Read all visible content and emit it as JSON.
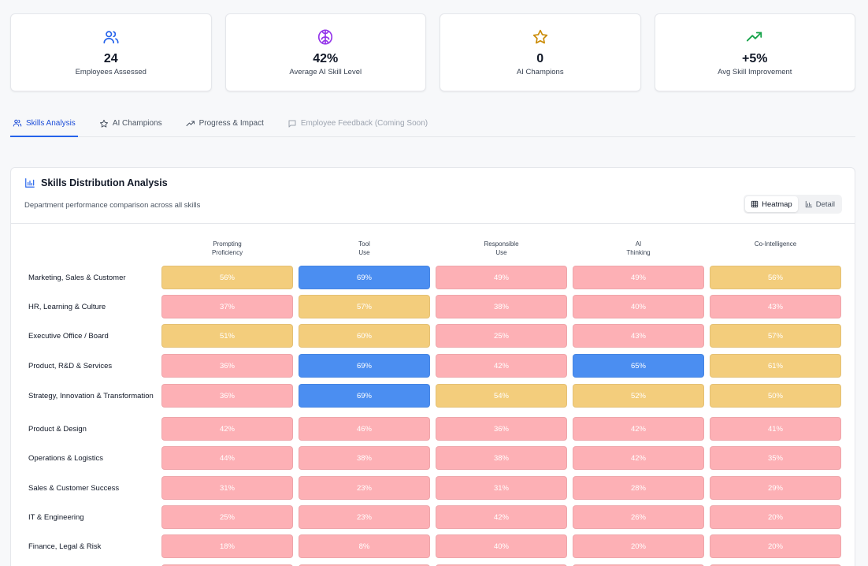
{
  "colors": {
    "low": "#fdb0b5",
    "mid": "#f3cd7c",
    "high": "#4b8ef1"
  },
  "stats": [
    {
      "icon": "users-icon",
      "value": "24",
      "label": "Employees Assessed",
      "color": "#2563eb"
    },
    {
      "icon": "brain-icon",
      "value": "42%",
      "label": "Average AI Skill Level",
      "color": "#9333ea"
    },
    {
      "icon": "star-icon",
      "value": "0",
      "label": "AI Champions",
      "color": "#ca8a04"
    },
    {
      "icon": "trending-up-icon",
      "value": "+5%",
      "label": "Avg Skill Improvement",
      "color": "#16a34a"
    }
  ],
  "tabs": [
    {
      "icon": "users-icon",
      "label": "Skills Analysis",
      "active": true
    },
    {
      "icon": "star-icon",
      "label": "AI Champions"
    },
    {
      "icon": "trending-up-icon",
      "label": "Progress & Impact"
    },
    {
      "icon": "message-icon",
      "label": "Employee Feedback (Coming Soon)",
      "disabled": true
    }
  ],
  "panel": {
    "title": "Skills Distribution Analysis",
    "subtitle": "Department performance comparison across all skills",
    "toggle": {
      "heatmap_label": "Heatmap",
      "detail_label": "Detail"
    }
  },
  "heatmap": {
    "columns": [
      "Prompting\nProficiency",
      "Tool\nUse",
      "Responsible\nUse",
      "AI\nThinking",
      "Co-Intelligence"
    ],
    "rows": [
      {
        "dept": "Marketing, Sales & Customer",
        "values": [
          56,
          69,
          49,
          49,
          56
        ]
      },
      {
        "dept": "HR, Learning & Culture",
        "values": [
          37,
          57,
          38,
          40,
          43
        ]
      },
      {
        "dept": "Executive Office / Board",
        "values": [
          51,
          60,
          25,
          43,
          57
        ]
      },
      {
        "dept": "Product, R&D & Services",
        "values": [
          36,
          69,
          42,
          65,
          61
        ]
      },
      {
        "dept": "Strategy, Innovation & Transformation",
        "values": [
          36,
          69,
          54,
          52,
          50
        ]
      },
      {
        "dept": "Product & Design",
        "values": [
          42,
          46,
          36,
          42,
          41
        ]
      },
      {
        "dept": "Operations & Logistics",
        "values": [
          44,
          38,
          38,
          42,
          35
        ]
      },
      {
        "dept": "Sales & Customer Success",
        "values": [
          31,
          23,
          31,
          28,
          29
        ]
      },
      {
        "dept": "IT & Engineering",
        "values": [
          25,
          23,
          42,
          26,
          20
        ]
      },
      {
        "dept": "Finance, Legal & Risk",
        "values": [
          18,
          8,
          40,
          20,
          20
        ]
      }
    ]
  }
}
